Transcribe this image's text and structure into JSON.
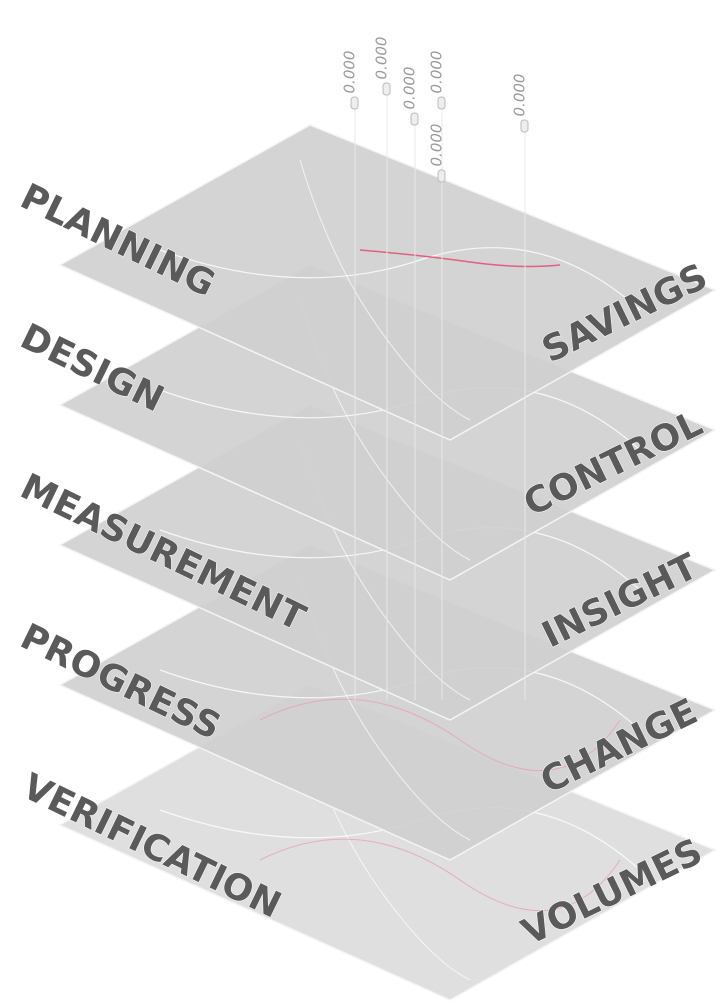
{
  "left_labels": [
    "PLANNING",
    "DESIGN",
    "MEASUREMENT",
    "PROGRESS",
    "VERIFICATION"
  ],
  "right_labels": [
    "SAVINGS",
    "CONTROL",
    "INSIGHT",
    "CHANGE",
    "VOLUMES"
  ],
  "markers": [
    "0.000",
    "0.000",
    "0.000",
    "0.000",
    "0.000",
    "0.000"
  ]
}
